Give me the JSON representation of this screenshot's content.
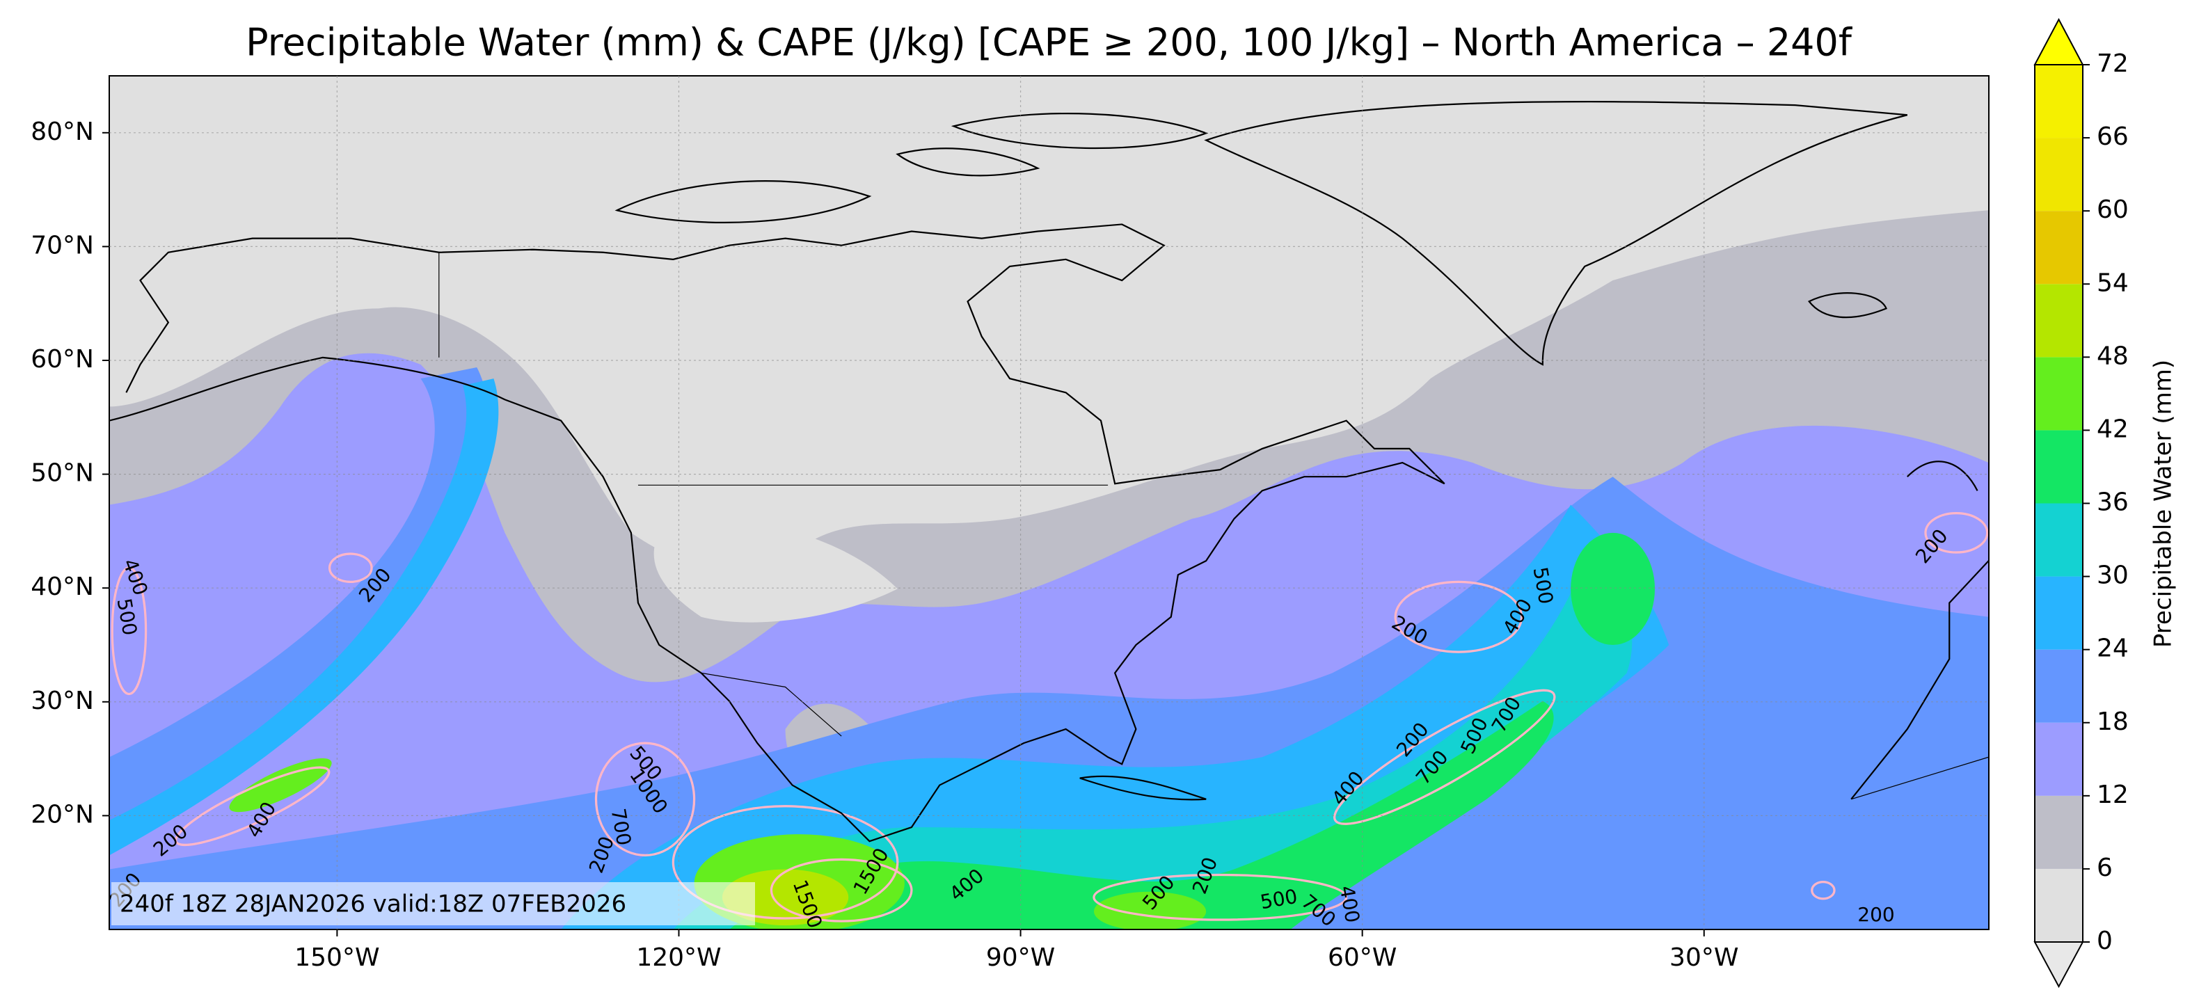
{
  "title": "Precipitable Water (mm) & CAPE (J/kg) [CAPE ≥ 200, 100 J/kg] – North America – 240f",
  "map": {
    "lon_range": [
      -170,
      -5
    ],
    "lat_range": [
      10,
      85
    ],
    "grid": true,
    "lat_ticks": [
      {
        "value": 80,
        "label": "80°N"
      },
      {
        "value": 70,
        "label": "70°N"
      },
      {
        "value": 60,
        "label": "60°N"
      },
      {
        "value": 50,
        "label": "50°N"
      },
      {
        "value": 40,
        "label": "40°N"
      },
      {
        "value": 30,
        "label": "30°N"
      },
      {
        "value": 20,
        "label": "20°N"
      }
    ],
    "lon_ticks": [
      {
        "value": -150,
        "label": "150°W"
      },
      {
        "value": -120,
        "label": "120°W"
      },
      {
        "value": -90,
        "label": "90°W"
      },
      {
        "value": -60,
        "label": "60°W"
      },
      {
        "value": -30,
        "label": "30°W"
      }
    ],
    "contour_labels": [
      200,
      400,
      500,
      200,
      400,
      200,
      500,
      1000,
      200,
      700,
      1500,
      1500,
      400,
      500,
      200,
      500,
      700,
      400,
      400,
      700,
      200,
      500,
      700,
      200,
      400,
      500,
      200,
      200
    ],
    "contour_color": "#ffb6c8"
  },
  "colorbar": {
    "label": "Precipitable Water (mm)",
    "levels": [
      0,
      6,
      12,
      18,
      24,
      30,
      36,
      42,
      48,
      54,
      60,
      66,
      72
    ],
    "colors": [
      "#e0e0e0",
      "#bebec8",
      "#9c9cff",
      "#6496ff",
      "#28b4ff",
      "#14d2d2",
      "#14e664",
      "#64ee1e",
      "#b4e600",
      "#e6c800",
      "#f0e600",
      "#f5f000"
    ],
    "under_color": "#e8e8e8",
    "over_color": "#ffff00"
  },
  "footer": "240f 18Z 28JAN2026 valid:18Z 07FEB2026"
}
